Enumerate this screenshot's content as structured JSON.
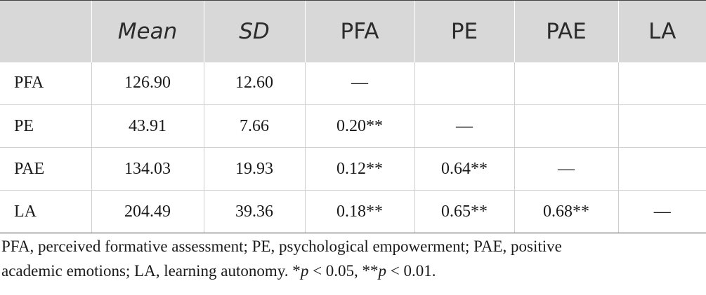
{
  "table": {
    "headers": [
      "",
      "Mean",
      "SD",
      "PFA",
      "PE",
      "PAE",
      "LA"
    ],
    "rows": [
      [
        "PFA",
        "126.90",
        "12.60",
        "—",
        "",
        "",
        ""
      ],
      [
        "PE",
        "43.91",
        "7.66",
        "0.20**",
        "—",
        "",
        ""
      ],
      [
        "PAE",
        "134.03",
        "19.93",
        "0.12**",
        "0.64**",
        "—",
        ""
      ],
      [
        "LA",
        "204.49",
        "39.36",
        "0.18**",
        "0.65**",
        "0.68**",
        "—"
      ]
    ]
  },
  "footnote": {
    "line1": "PFA, perceived formative assessment; PE, psychological empowerment; PAE, positive",
    "line2_text": "academic emotions; LA, learning autonomy. *",
    "p1": "p",
    "line2_mid": " < 0.05, **",
    "p2": "p",
    "line2_end": " < 0.01."
  },
  "colors": {
    "header_bg": "#d8d8d8",
    "rule": "#444444",
    "grid": "#cfcfcf"
  }
}
